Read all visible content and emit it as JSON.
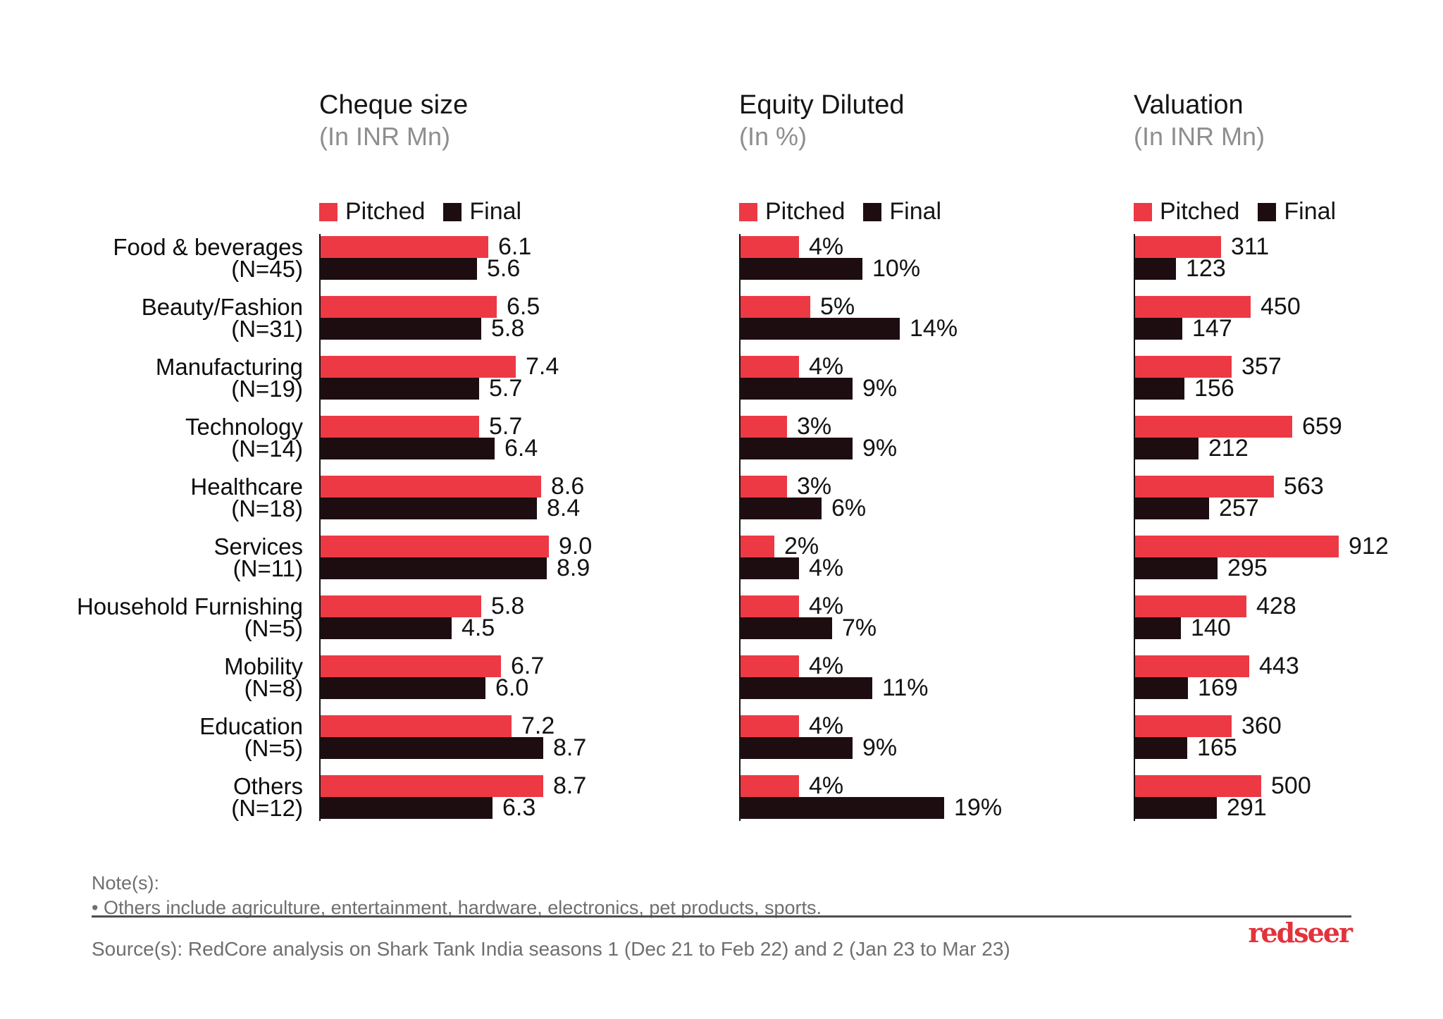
{
  "colors": {
    "pitched": "#ed3944",
    "final": "#1e0d10",
    "axis": "#141414",
    "title_text": "#151515",
    "subtitle_gray": "#8e8e8e",
    "notes_gray": "#6f6f6f",
    "rule_gray": "#4e4e4e",
    "logo_red": "#e2333c",
    "background": "#ffffff"
  },
  "categories": [
    {
      "label": "Food & beverages",
      "n": "(N=45)"
    },
    {
      "label": "Beauty/Fashion",
      "n": "(N=31)"
    },
    {
      "label": "Manufacturing",
      "n": "(N=19)"
    },
    {
      "label": "Technology",
      "n": "(N=14)"
    },
    {
      "label": "Healthcare",
      "n": "(N=18)"
    },
    {
      "label": "Services",
      "n": "(N=11)"
    },
    {
      "label": "Household Furnishing",
      "n": "(N=5)"
    },
    {
      "label": "Mobility",
      "n": "(N=8)"
    },
    {
      "label": "Education",
      "n": "(N=5)"
    },
    {
      "label": "Others",
      "n": "(N=12)"
    }
  ],
  "chart_data": [
    {
      "type": "bar",
      "orientation": "horizontal",
      "title": "Cheque size",
      "subtitle": "(In INR Mn)",
      "legend": [
        "Pitched",
        "Final"
      ],
      "legend_position": "top-left",
      "grid": false,
      "axis_max": 10,
      "categories": [
        "Food & beverages (N=45)",
        "Beauty/Fashion (N=31)",
        "Manufacturing (N=19)",
        "Technology (N=14)",
        "Healthcare (N=18)",
        "Services (N=11)",
        "Household Furnishing (N=5)",
        "Mobility (N=8)",
        "Education (N=5)",
        "Others (N=12)"
      ],
      "series": [
        {
          "name": "Pitched",
          "values": [
            6.1,
            6.5,
            7.4,
            5.7,
            8.6,
            9.0,
            5.8,
            6.7,
            7.2,
            8.7
          ],
          "labels": [
            "6.1",
            "6.5",
            "7.4",
            "5.7",
            "8.6",
            "9.0",
            "5.8",
            "6.7",
            "7.2",
            "8.7"
          ]
        },
        {
          "name": "Final",
          "values": [
            5.6,
            5.8,
            5.7,
            6.4,
            8.4,
            8.9,
            4.5,
            6.0,
            8.7,
            6.3
          ],
          "labels": [
            "5.6",
            "5.8",
            "5.7",
            "6.4",
            "8.4",
            "8.9",
            "4.5",
            "6.0",
            "8.7",
            "6.3"
          ]
        }
      ]
    },
    {
      "type": "bar",
      "orientation": "horizontal",
      "title": "Equity Diluted",
      "subtitle": "(In %)",
      "legend": [
        "Pitched",
        "Final"
      ],
      "legend_position": "top-left",
      "grid": false,
      "axis_max": 20,
      "categories": [
        "Food & beverages (N=45)",
        "Beauty/Fashion (N=31)",
        "Manufacturing (N=19)",
        "Technology (N=14)",
        "Healthcare (N=18)",
        "Services (N=11)",
        "Household Furnishing (N=5)",
        "Mobility (N=8)",
        "Education (N=5)",
        "Others (N=12)"
      ],
      "series": [
        {
          "name": "Pitched",
          "values": [
            4,
            5,
            4,
            3,
            3,
            2,
            4,
            4,
            4,
            4
          ],
          "labels": [
            "4%",
            "5%",
            "4%",
            "3%",
            "3%",
            "2%",
            "4%",
            "4%",
            "4%",
            "4%"
          ]
        },
        {
          "name": "Final",
          "values": [
            10,
            14,
            9,
            9,
            6,
            4,
            7,
            11,
            9,
            19
          ],
          "labels": [
            "10%",
            "14%",
            "9%",
            "9%",
            "6%",
            "4%",
            "7%",
            "11%",
            "9%",
            "19%"
          ]
        }
      ]
    },
    {
      "type": "bar",
      "orientation": "horizontal",
      "title": "Valuation",
      "subtitle": "(In INR Mn)",
      "legend": [
        "Pitched",
        "Final"
      ],
      "legend_position": "top-left",
      "grid": false,
      "axis_max": 1000,
      "categories": [
        "Food & beverages (N=45)",
        "Beauty/Fashion (N=31)",
        "Manufacturing (N=19)",
        "Technology (N=14)",
        "Healthcare (N=18)",
        "Services (N=11)",
        "Household Furnishing (N=5)",
        "Mobility (N=8)",
        "Education (N=5)",
        "Others (N=12)"
      ],
      "series": [
        {
          "name": "Pitched",
          "values": [
            311,
            450,
            357,
            659,
            563,
            912,
            428,
            443,
            360,
            500
          ],
          "labels": [
            "311",
            "450",
            "357",
            "659",
            "563",
            "912",
            "428",
            "443",
            "360",
            "500"
          ]
        },
        {
          "name": "Final",
          "values": [
            123,
            147,
            156,
            212,
            257,
            295,
            140,
            169,
            165,
            291
          ],
          "labels": [
            "123",
            "147",
            "156",
            "212",
            "257",
            "295",
            "140",
            "169",
            "165",
            "291"
          ]
        }
      ]
    }
  ],
  "notes": {
    "heading": "Note(s):",
    "bullet": "•",
    "items": [
      "Others include agriculture, entertainment, hardware, electronics, pet products, sports."
    ]
  },
  "source": {
    "text": "Source(s): RedCore analysis on Shark Tank India seasons 1 (Dec 21 to Feb 22) and 2 (Jan 23 to Mar 23)"
  },
  "logo": {
    "text": "redseer"
  }
}
